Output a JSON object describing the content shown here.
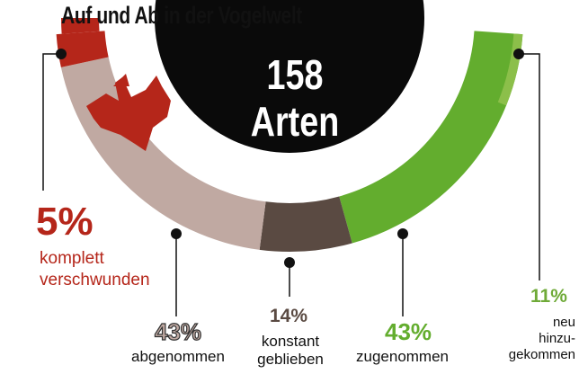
{
  "chart_data": {
    "type": "pie",
    "title": "Auf und Ab in der Vogelwelt",
    "center": {
      "value": "158",
      "unit": "Arten"
    },
    "categories": [
      "komplett verschwunden",
      "abgenommen",
      "konstant geblieben",
      "zugenommen",
      "neu hinzugekommen"
    ],
    "values": [
      5,
      43,
      14,
      43,
      11
    ],
    "segments": [
      {
        "key": "verschwunden",
        "percent": "5%",
        "label_lines": [
          "komplett",
          "verschwunden"
        ],
        "value": 5,
        "color": "#b5261a"
      },
      {
        "key": "abgenommen",
        "percent": "43%",
        "label_lines": [
          "abgenommen"
        ],
        "value": 43,
        "color": "#c0a9a2"
      },
      {
        "key": "konstant",
        "percent": "14%",
        "label_lines": [
          "konstant",
          "geblieben"
        ],
        "value": 14,
        "color": "#5a4a42"
      },
      {
        "key": "zugenommen",
        "percent": "43%",
        "label_lines": [
          "zugenommen"
        ],
        "value": 43,
        "color": "#63ad2e"
      },
      {
        "key": "neu",
        "percent": "11%",
        "label_lines": [
          "neu",
          "hinzu-",
          "gekommen"
        ],
        "value": 11,
        "color": "#6faa38"
      }
    ],
    "colors": {
      "ring_gap": "#ffffff",
      "center": "#0a0a0a",
      "text": "#111111",
      "new_accent": "#8cbf4a"
    }
  }
}
